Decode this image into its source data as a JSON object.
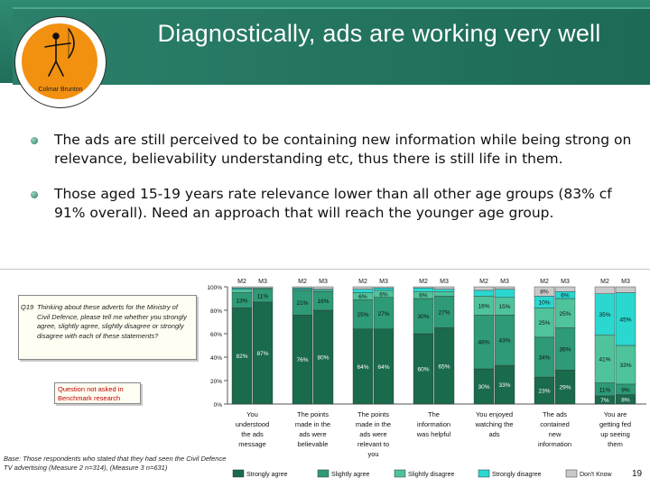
{
  "slide": {
    "title": "Diagnostically, ads are working very well",
    "logo_text": "Colmar Brunton",
    "bullets": [
      "The ads are still perceived to be containing new information while being strong on relevance, believability understanding etc, thus there is still life in them.",
      "Those aged 15-19 years rate relevance lower than all other age groups (83% cf 91% overall).  Need an approach that will reach the younger age group."
    ],
    "question_label": "Q19",
    "question_text": "Thinking about these adverts for the Ministry of Civil Defence, please tell me whether you strongly agree, slightly agree, slightly disagree or strongly disagree with each of these statements?",
    "note": "Question not asked in Benchmark research",
    "base_note": "Base: Those respondents who stated that they had seen the Civil Defence TV advertising (Measure 2 n=314), (Measure 3 n=631)",
    "page_number": "19"
  },
  "chart_data": {
    "type": "bar",
    "stacked": true,
    "percent": true,
    "ylim": [
      0,
      100
    ],
    "y_ticks": [
      "0%",
      "20%",
      "40%",
      "60%",
      "80%",
      "100%"
    ],
    "group_labels": [
      "You understood the ads message",
      "The points made in the ads were believable",
      "The points made in the ads were relevant to you",
      "The information was helpful",
      "You enjoyed watching the ads",
      "The ads contained new information",
      "You are getting fed up seeing them"
    ],
    "bar_labels": [
      "M2",
      "M3"
    ],
    "series": [
      {
        "name": "Strongly agree",
        "color": "#1a6a4c",
        "values": [
          82,
          87,
          76,
          80,
          64,
          64,
          60,
          65,
          30,
          33,
          23,
          29,
          7,
          8
        ]
      },
      {
        "name": "Slightly agree",
        "color": "#2e9a77",
        "values": [
          13,
          11,
          21,
          16,
          25,
          27,
          30,
          27,
          46,
          43,
          34,
          36,
          11,
          9
        ]
      },
      {
        "name": "Slightly disagree",
        "color": "#4fc39c",
        "values": [
          3,
          1,
          1,
          1,
          6,
          6,
          6,
          4,
          16,
          15,
          25,
          25,
          41,
          33
        ]
      },
      {
        "name": "Strongly disagree",
        "color": "#2ad8d0",
        "values": [
          1,
          0,
          1,
          1,
          3,
          2,
          3,
          2,
          5,
          7,
          10,
          6,
          35,
          45
        ]
      },
      {
        "name": "Don't Know",
        "color": "#c9c9c9",
        "values": [
          1,
          1,
          1,
          2,
          2,
          1,
          1,
          2,
          3,
          2,
          8,
          4,
          6,
          5
        ]
      }
    ],
    "labels": [
      [
        82,
        13,
        null,
        null,
        null
      ],
      [
        87,
        11,
        null,
        null,
        null
      ],
      [
        76,
        21,
        null,
        null,
        null
      ],
      [
        80,
        16,
        null,
        null,
        null
      ],
      [
        64,
        25,
        6,
        null,
        null
      ],
      [
        64,
        27,
        6,
        null,
        null
      ],
      [
        60,
        30,
        6,
        null,
        null
      ],
      [
        65,
        27,
        4,
        null,
        null
      ],
      [
        30,
        46,
        16,
        null,
        null
      ],
      [
        33,
        43,
        15,
        null,
        null
      ],
      [
        23,
        34,
        25,
        10,
        8
      ],
      [
        29,
        36,
        25,
        6,
        null
      ],
      [
        7,
        11,
        41,
        35,
        null
      ],
      [
        8,
        9,
        33,
        45,
        null
      ]
    ]
  }
}
